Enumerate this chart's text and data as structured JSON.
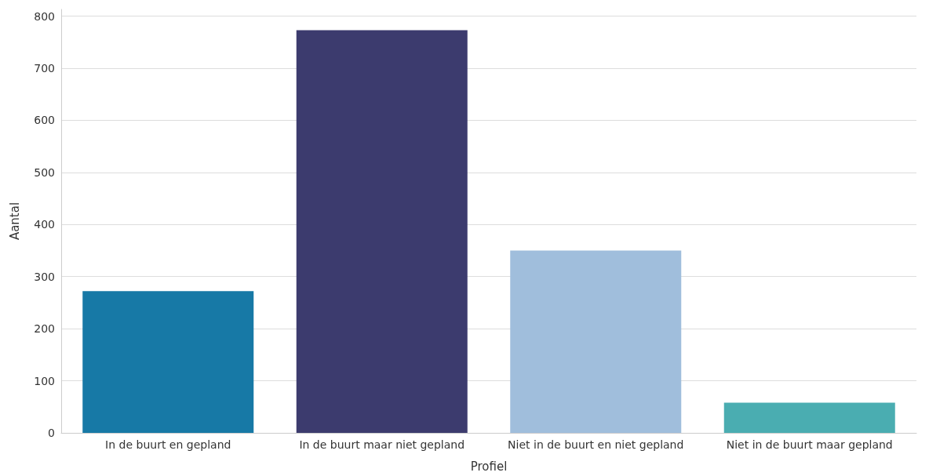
{
  "chart_data": {
    "type": "bar",
    "xlabel": "Profiel",
    "ylabel": "Aantal",
    "categories": [
      "In de buurt en gepland",
      "In de buurt maar niet gepland",
      "Niet in de buurt en niet gepland",
      "Niet in de buurt maar gepland"
    ],
    "values": [
      272,
      773,
      350,
      58
    ],
    "colors": [
      "#1779a6",
      "#3c3b6e",
      "#a0bedc",
      "#4aadb1"
    ],
    "ylim": [
      0,
      813
    ],
    "yticks": [
      0,
      100,
      200,
      300,
      400,
      500,
      600,
      700,
      800
    ],
    "grid": "y"
  }
}
